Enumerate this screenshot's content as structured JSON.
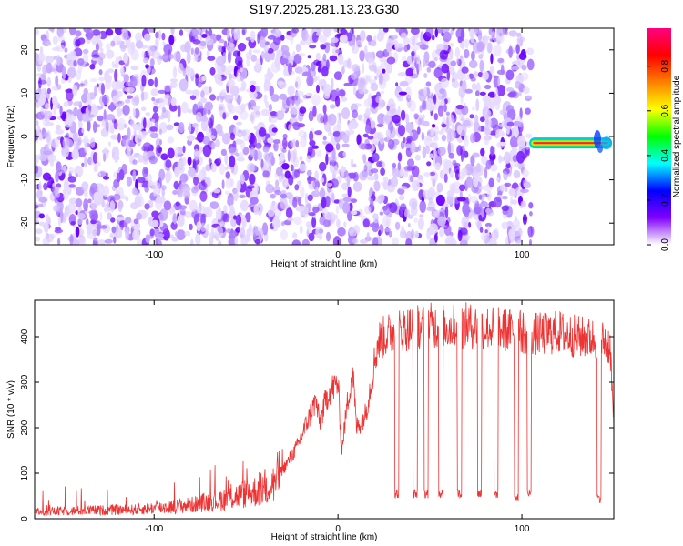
{
  "title": "S197.2025.281.13.23.G30",
  "chart_data": [
    {
      "type": "heatmap",
      "name": "spectrogram",
      "xlabel": "Height of straight line (km)",
      "ylabel": "Frequency (Hz)",
      "xlim": [
        -165,
        150
      ],
      "ylim": [
        -25,
        25
      ],
      "xticks": [
        -100,
        0,
        100
      ],
      "yticks": [
        -20,
        -10,
        0,
        10,
        20
      ],
      "noise_region_x": [
        -165,
        105
      ],
      "signal": {
        "x_start": 105,
        "x_end": 150,
        "frequency_hz": -1.5,
        "peak_amplitude": 0.95,
        "description": "narrow tonal line"
      },
      "colorbar": {
        "label": "Normalized spectral amplitude",
        "ticks": [
          0.0,
          0.2,
          0.4,
          0.6,
          0.8
        ],
        "range": [
          0,
          0.97
        ],
        "colors": [
          "#ffffff",
          "#8000ff",
          "#0000ff",
          "#00ffff",
          "#00ff00",
          "#ffff00",
          "#ff8000",
          "#ff0000",
          "#ff0080"
        ]
      }
    },
    {
      "type": "line",
      "name": "snr",
      "xlabel": "Height of straight line (km)",
      "ylabel": "SNR (10 * v/v)",
      "xlim": [
        -165,
        150
      ],
      "ylim": [
        0,
        480
      ],
      "xticks": [
        -100,
        0,
        100
      ],
      "yticks": [
        0,
        100,
        200,
        300,
        400
      ],
      "color": "#ee3333",
      "series": [
        {
          "name": "SNR",
          "x": [
            -165,
            -140,
            -110,
            -80,
            -60,
            -45,
            -35,
            -28,
            -22,
            -18,
            -15,
            -12,
            -10,
            -8,
            -5,
            -2,
            0,
            2,
            5,
            8,
            10,
            12,
            15,
            18,
            20,
            22,
            25,
            30,
            35,
            40,
            50,
            60,
            70,
            80,
            90,
            100,
            110,
            120,
            130,
            140,
            145,
            148,
            150
          ],
          "values": [
            15,
            18,
            20,
            30,
            45,
            60,
            80,
            120,
            160,
            200,
            230,
            260,
            210,
            240,
            280,
            290,
            300,
            150,
            250,
            330,
            200,
            210,
            230,
            300,
            350,
            390,
            400,
            410,
            415,
            420,
            425,
            420,
            425,
            420,
            415,
            410,
            405,
            410,
            400,
            395,
            390,
            380,
            200
          ]
        }
      ],
      "dropouts": [
        {
          "x": 32,
          "to": 45
        },
        {
          "x": 42,
          "to": 45
        },
        {
          "x": 48,
          "to": 45
        },
        {
          "x": 56,
          "to": 45
        },
        {
          "x": 66,
          "to": 45
        },
        {
          "x": 77,
          "to": 45
        },
        {
          "x": 86,
          "to": 45
        },
        {
          "x": 97,
          "to": 40
        },
        {
          "x": 104,
          "to": 45
        },
        {
          "x": 142,
          "to": 35
        }
      ]
    }
  ]
}
